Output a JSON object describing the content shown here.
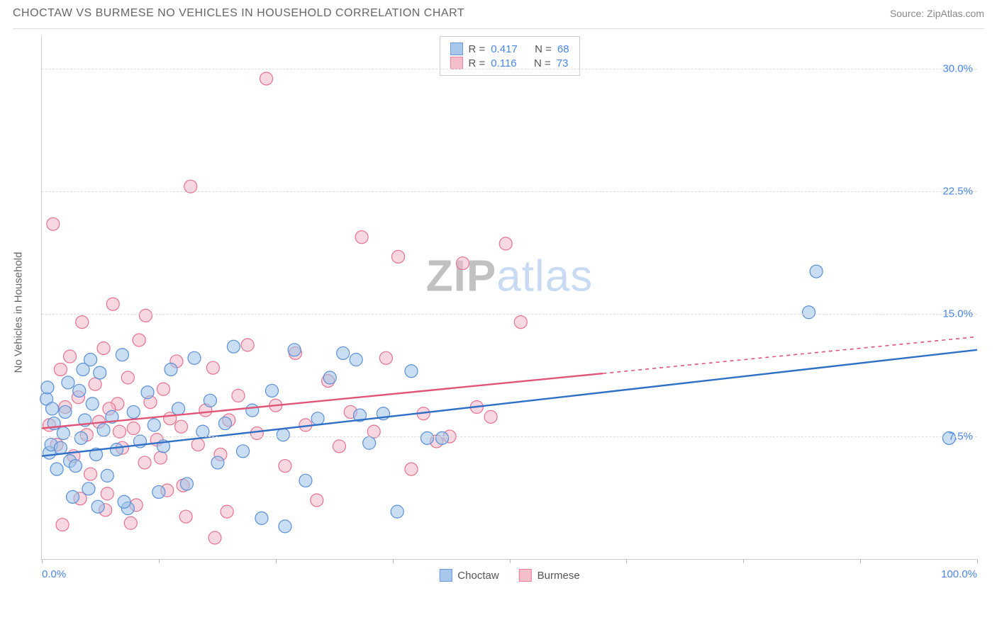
{
  "header": {
    "title": "CHOCTAW VS BURMESE NO VEHICLES IN HOUSEHOLD CORRELATION CHART",
    "source_label": "Source: ",
    "source_name": "ZipAtlas.com"
  },
  "chart": {
    "type": "scatter",
    "ylabel": "No Vehicles in Household",
    "xlim": [
      0,
      100
    ],
    "ylim": [
      0,
      32
    ],
    "x_axis_labels": {
      "left": "0.0%",
      "right": "100.0%"
    },
    "y_gridlines": [
      7.5,
      15.0,
      22.5,
      30.0
    ],
    "y_tick_labels": [
      "7.5%",
      "15.0%",
      "22.5%",
      "30.0%"
    ],
    "x_tick_positions": [
      0,
      12.5,
      25,
      37.5,
      50,
      62.5,
      75,
      87.5,
      100
    ],
    "background_color": "#ffffff",
    "grid_color": "#dddddd",
    "axis_color": "#cccccc",
    "tick_label_color": "#4a86e8",
    "marker_radius": 9,
    "marker_stroke_width": 1.2,
    "trend_line_width": 2.4,
    "trend_dash_width": 1.6,
    "series": {
      "choctaw": {
        "label": "Choctaw",
        "fill": "#9ec3ea",
        "stroke": "#5a8fd6",
        "fill_opacity": 0.55,
        "r_value": "0.417",
        "n_value": "68",
        "trend": {
          "x1": 0,
          "y1": 6.3,
          "x2": 100,
          "y2": 12.8,
          "solid_until_x": 100,
          "color": "#2f6fc5"
        },
        "points": [
          [
            0.5,
            9.8
          ],
          [
            0.8,
            6.5
          ],
          [
            1.0,
            7.0
          ],
          [
            1.3,
            8.3
          ],
          [
            1.6,
            5.5
          ],
          [
            2.0,
            6.8
          ],
          [
            2.3,
            7.7
          ],
          [
            2.5,
            9.0
          ],
          [
            3.0,
            6.0
          ],
          [
            3.3,
            3.8
          ],
          [
            3.6,
            5.7
          ],
          [
            4.0,
            10.3
          ],
          [
            4.2,
            7.4
          ],
          [
            4.6,
            8.5
          ],
          [
            5.0,
            4.3
          ],
          [
            5.4,
            9.5
          ],
          [
            5.8,
            6.4
          ],
          [
            6.2,
            11.4
          ],
          [
            6.6,
            7.9
          ],
          [
            7.0,
            5.1
          ],
          [
            7.5,
            8.7
          ],
          [
            8.0,
            6.7
          ],
          [
            8.6,
            12.5
          ],
          [
            9.2,
            3.1
          ],
          [
            9.8,
            9.0
          ],
          [
            10.5,
            7.2
          ],
          [
            11.3,
            10.2
          ],
          [
            12.0,
            8.2
          ],
          [
            13.0,
            6.9
          ],
          [
            13.8,
            11.6
          ],
          [
            14.6,
            9.2
          ],
          [
            15.5,
            4.6
          ],
          [
            16.3,
            12.3
          ],
          [
            17.2,
            7.8
          ],
          [
            18.0,
            9.7
          ],
          [
            18.8,
            5.9
          ],
          [
            19.6,
            8.3
          ],
          [
            20.5,
            13.0
          ],
          [
            21.5,
            6.6
          ],
          [
            22.5,
            9.1
          ],
          [
            23.5,
            2.5
          ],
          [
            24.6,
            10.3
          ],
          [
            25.8,
            7.6
          ],
          [
            27.0,
            12.8
          ],
          [
            28.2,
            4.8
          ],
          [
            29.5,
            8.6
          ],
          [
            30.8,
            11.1
          ],
          [
            32.2,
            12.6
          ],
          [
            33.6,
            12.2
          ],
          [
            35.0,
            7.1
          ],
          [
            36.5,
            8.9
          ],
          [
            38.0,
            2.9
          ],
          [
            39.5,
            11.5
          ],
          [
            41.2,
            7.4
          ],
          [
            42.8,
            7.4
          ],
          [
            34.0,
            8.8
          ],
          [
            26.0,
            2.0
          ],
          [
            12.5,
            4.1
          ],
          [
            8.8,
            3.5
          ],
          [
            6.0,
            3.2
          ],
          [
            82.8,
            17.6
          ],
          [
            82.0,
            15.1
          ],
          [
            97.0,
            7.4
          ],
          [
            0.6,
            10.5
          ],
          [
            1.1,
            9.2
          ],
          [
            2.8,
            10.8
          ],
          [
            4.4,
            11.6
          ],
          [
            5.2,
            12.2
          ]
        ]
      },
      "burmese": {
        "label": "Burmese",
        "fill": "#f3b8c6",
        "stroke": "#e4728f",
        "fill_opacity": 0.55,
        "r_value": "0.116",
        "n_value": "73",
        "trend": {
          "x1": 0,
          "y1": 8.0,
          "x2": 100,
          "y2": 13.6,
          "solid_until_x": 60,
          "color": "#e05577"
        },
        "points": [
          [
            0.8,
            8.2
          ],
          [
            1.2,
            20.5
          ],
          [
            1.6,
            7.0
          ],
          [
            2.0,
            11.6
          ],
          [
            2.5,
            9.3
          ],
          [
            3.0,
            12.4
          ],
          [
            3.4,
            6.3
          ],
          [
            3.9,
            9.9
          ],
          [
            4.3,
            14.5
          ],
          [
            4.8,
            7.6
          ],
          [
            5.2,
            5.2
          ],
          [
            5.7,
            10.7
          ],
          [
            6.1,
            8.4
          ],
          [
            6.6,
            12.9
          ],
          [
            7.0,
            4.0
          ],
          [
            7.6,
            15.6
          ],
          [
            8.1,
            9.5
          ],
          [
            8.6,
            6.8
          ],
          [
            9.2,
            11.1
          ],
          [
            9.8,
            8.0
          ],
          [
            10.4,
            13.4
          ],
          [
            11.0,
            5.9
          ],
          [
            11.6,
            9.6
          ],
          [
            12.3,
            7.3
          ],
          [
            13.0,
            10.4
          ],
          [
            13.7,
            8.6
          ],
          [
            14.4,
            12.1
          ],
          [
            15.1,
            4.5
          ],
          [
            15.9,
            22.8
          ],
          [
            16.7,
            7.0
          ],
          [
            17.5,
            9.1
          ],
          [
            18.3,
            11.7
          ],
          [
            19.1,
            6.4
          ],
          [
            20.0,
            8.5
          ],
          [
            21.0,
            10.0
          ],
          [
            22.0,
            13.1
          ],
          [
            23.0,
            7.7
          ],
          [
            24.0,
            29.4
          ],
          [
            25.0,
            9.4
          ],
          [
            26.0,
            5.7
          ],
          [
            27.1,
            12.6
          ],
          [
            28.2,
            8.2
          ],
          [
            29.4,
            3.6
          ],
          [
            30.6,
            10.9
          ],
          [
            31.8,
            6.9
          ],
          [
            33.0,
            9.0
          ],
          [
            34.2,
            19.7
          ],
          [
            35.5,
            7.8
          ],
          [
            36.8,
            12.3
          ],
          [
            38.1,
            18.5
          ],
          [
            39.5,
            5.5
          ],
          [
            40.8,
            8.9
          ],
          [
            42.2,
            7.2
          ],
          [
            43.6,
            7.5
          ],
          [
            45.0,
            18.1
          ],
          [
            46.5,
            9.3
          ],
          [
            48.0,
            8.7
          ],
          [
            49.6,
            19.3
          ],
          [
            51.2,
            14.5
          ],
          [
            18.5,
            1.3
          ],
          [
            9.5,
            2.2
          ],
          [
            6.8,
            3.0
          ],
          [
            4.1,
            3.7
          ],
          [
            2.2,
            2.1
          ],
          [
            11.1,
            14.9
          ],
          [
            13.4,
            4.2
          ],
          [
            15.4,
            2.6
          ],
          [
            19.8,
            2.9
          ],
          [
            10.1,
            3.3
          ],
          [
            7.2,
            9.2
          ],
          [
            12.7,
            6.2
          ],
          [
            8.3,
            7.8
          ],
          [
            14.9,
            8.1
          ]
        ]
      }
    },
    "stats_box": {
      "r_label": "R =",
      "n_label": "N ="
    },
    "watermark": {
      "part1": "ZIP",
      "part2": "atlas"
    }
  }
}
